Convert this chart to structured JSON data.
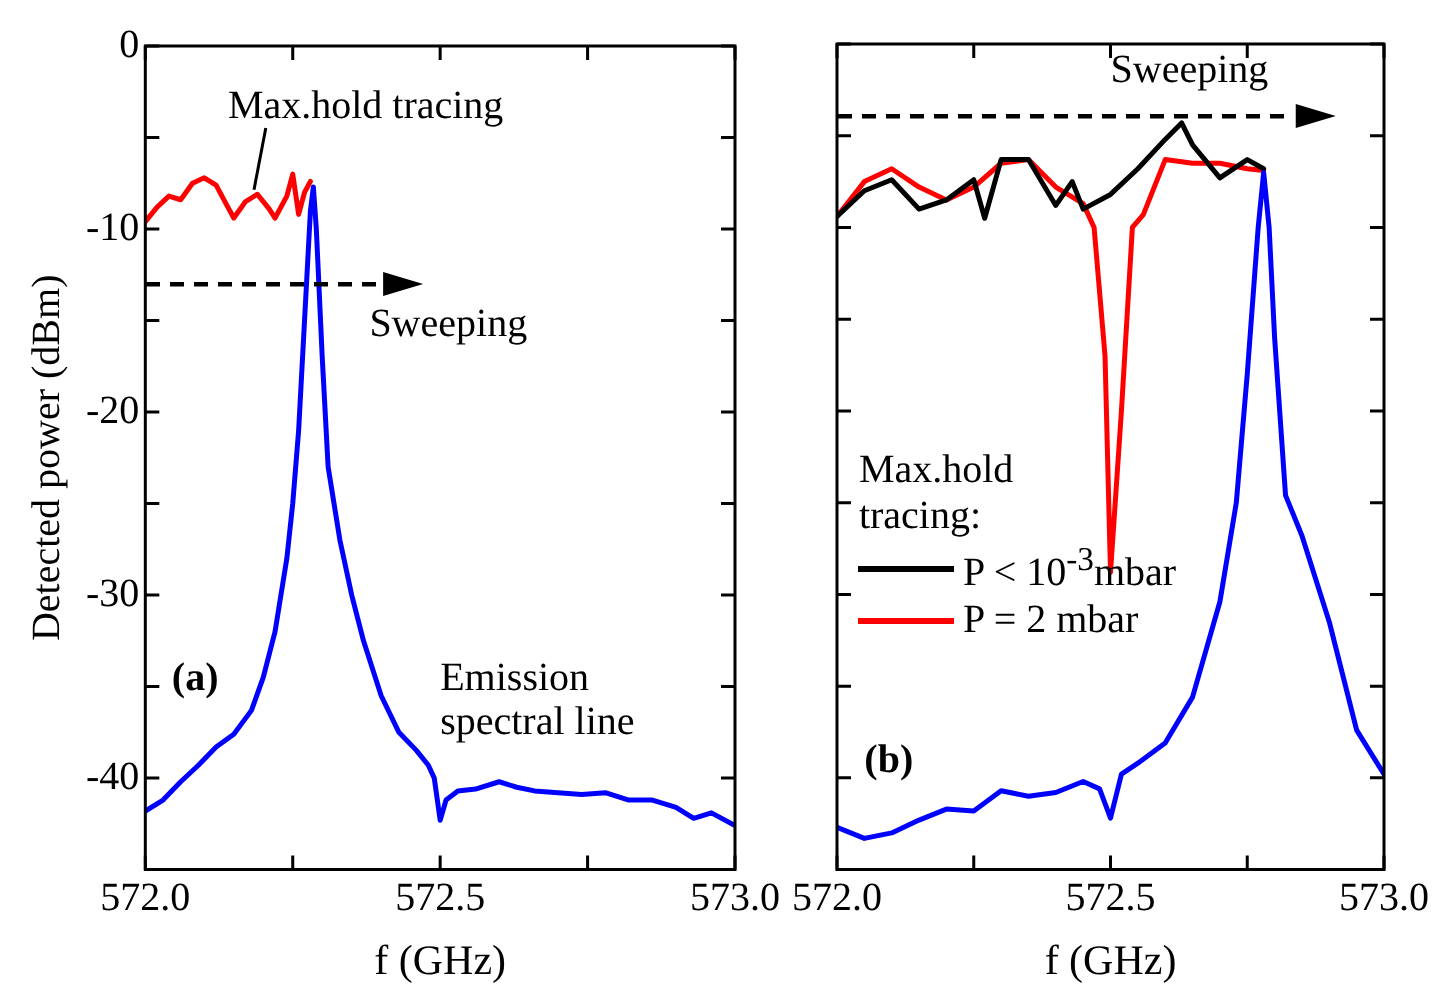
{
  "chart_data": [
    {
      "type": "line",
      "ylabel": "Detected power (dBm)",
      "xlabel": "f (GHz)",
      "xlim": [
        572,
        573
      ],
      "ylim": [
        -45,
        0
      ],
      "xticks": [
        {
          "value": 572,
          "label": "572.0"
        },
        {
          "value": 572.25,
          "label": null
        },
        {
          "value": 572.5,
          "label": "572.5"
        },
        {
          "value": 572.75,
          "label": null
        },
        {
          "value": 573,
          "label": "573.0"
        }
      ],
      "yticks": [
        0,
        {
          "value": -5,
          "label": null
        },
        -10,
        {
          "value": -15,
          "label": null
        },
        -20,
        {
          "value": -25,
          "label": null
        },
        -30,
        {
          "value": -35,
          "label": null
        },
        -40
      ],
      "grid": false,
      "legend": false,
      "marker": "none",
      "line_style": "solid",
      "annotations": [
        "Max.hold tracing",
        "Sweeping",
        "(a)",
        "Emission spectral line"
      ],
      "series": [
        {
          "color": "#0000ff",
          "x": [
            572.0,
            572.03,
            572.06,
            572.09,
            572.12,
            572.15,
            572.18,
            572.2,
            572.22,
            572.24,
            572.25,
            572.26,
            572.27,
            572.28,
            572.285,
            572.29,
            572.3,
            572.31,
            572.33,
            572.35,
            572.37,
            572.4,
            572.43,
            572.46,
            572.48,
            572.49,
            572.5,
            572.51,
            572.53,
            572.56,
            572.6,
            572.63,
            572.66,
            572.7,
            572.74,
            572.78,
            572.82,
            572.86,
            572.9,
            572.93,
            572.96,
            573.0
          ],
          "values": [
            -41.8,
            -41.2,
            -40.2,
            -39.3,
            -38.3,
            -37.6,
            -36.3,
            -34.5,
            -32,
            -28,
            -25,
            -21,
            -15,
            -9,
            -7.7,
            -10,
            -17,
            -23,
            -27,
            -30,
            -32.5,
            -35.5,
            -37.5,
            -38.5,
            -39.3,
            -40,
            -42.3,
            -41.2,
            -40.7,
            -40.6,
            -40.2,
            -40.5,
            -40.7,
            -40.8,
            -40.9,
            -40.8,
            -41.2,
            -41.2,
            -41.6,
            -42.2,
            -41.9,
            -42.6
          ]
        },
        {
          "color": "#ff0000",
          "x": [
            572.0,
            572.02,
            572.04,
            572.06,
            572.08,
            572.1,
            572.12,
            572.14,
            572.15,
            572.17,
            572.19,
            572.21,
            572.22,
            572.24,
            572.25,
            572.26,
            572.27,
            572.28
          ],
          "values": [
            -9.6,
            -8.8,
            -8.2,
            -8.4,
            -7.5,
            -7.2,
            -7.6,
            -8.8,
            -9.4,
            -8.5,
            -8.1,
            -8.9,
            -9.4,
            -8.2,
            -7.0,
            -9.2,
            -8.0,
            -7.4
          ]
        }
      ]
    },
    {
      "type": "line",
      "xlabel": "f (GHz)",
      "xlim": [
        572,
        573
      ],
      "ylim": [
        -45,
        0
      ],
      "tick_labels": "x",
      "xticks": [
        {
          "value": 572,
          "label": "572.0"
        },
        {
          "value": 572.25,
          "label": null
        },
        {
          "value": 572.5,
          "label": "572.5"
        },
        {
          "value": 572.75,
          "label": null
        },
        {
          "value": 573,
          "label": "573.0"
        }
      ],
      "yticks": [
        0,
        {
          "value": -5,
          "label": null
        },
        -10,
        {
          "value": -15,
          "label": null
        },
        -20,
        {
          "value": -25,
          "label": null
        },
        -30,
        {
          "value": -35,
          "label": null
        },
        -40
      ],
      "grid": false,
      "legend": "left",
      "legend_title": "Max.hold tracing:",
      "marker": "none",
      "line_style": "solid",
      "annotations": [
        "Sweeping",
        "(b)"
      ],
      "series": [
        {
          "color": "#0000ff",
          "x": [
            572.0,
            572.05,
            572.1,
            572.15,
            572.2,
            572.25,
            572.3,
            572.35,
            572.4,
            572.45,
            572.48,
            572.5,
            572.52,
            572.55,
            572.6,
            572.65,
            572.7,
            572.73,
            572.75,
            572.77,
            572.78,
            572.79,
            572.8,
            572.82,
            572.85,
            572.9,
            572.95,
            573.0
          ],
          "values": [
            -42.7,
            -43.3,
            -43,
            -42.3,
            -41.7,
            -41.8,
            -40.7,
            -41,
            -40.8,
            -40.2,
            -40.6,
            -42.2,
            -39.8,
            -39.2,
            -38.1,
            -35.6,
            -30.4,
            -25,
            -18,
            -10,
            -7,
            -10,
            -16,
            -24.6,
            -26.8,
            -31.5,
            -37.4,
            -39.8
          ]
        },
        {
          "name": "P < 10$^{-3}$mbar",
          "color": "#000000",
          "x": [
            572.0,
            572.05,
            572.1,
            572.15,
            572.2,
            572.25,
            572.27,
            572.3,
            572.35,
            572.4,
            572.43,
            572.45,
            572.5,
            572.55,
            572.6,
            572.63,
            572.65,
            572.7,
            572.75,
            572.78
          ],
          "values": [
            -9.4,
            -8,
            -7.4,
            -9,
            -8.5,
            -7.4,
            -9.5,
            -6.3,
            -6.3,
            -8.8,
            -7.5,
            -9,
            -8.2,
            -6.8,
            -5.2,
            -4.3,
            -5.5,
            -7.3,
            -6.3,
            -6.8
          ]
        },
        {
          "name": "P = 2 mbar",
          "color": "#ff0000",
          "x": [
            572.0,
            572.05,
            572.1,
            572.15,
            572.2,
            572.25,
            572.3,
            572.35,
            572.4,
            572.45,
            572.47,
            572.49,
            572.5,
            572.52,
            572.54,
            572.56,
            572.6,
            572.65,
            572.7,
            572.75,
            572.78
          ],
          "values": [
            -9.4,
            -7.5,
            -6.8,
            -7.8,
            -8.5,
            -7.8,
            -6.5,
            -6.3,
            -7.8,
            -8.7,
            -10,
            -17,
            -28.8,
            -20,
            -10,
            -9.3,
            -6.3,
            -6.5,
            -6.5,
            -6.8,
            -6.9
          ]
        }
      ]
    }
  ]
}
